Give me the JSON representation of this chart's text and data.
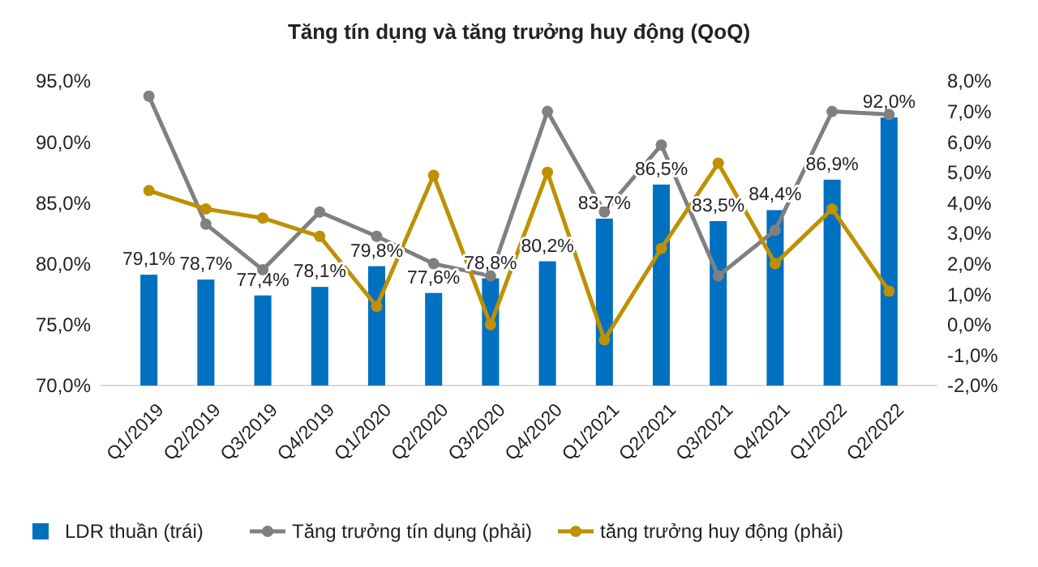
{
  "chart_data": {
    "type": "bar",
    "title": "Tăng tín dụng và tăng trưởng huy động (QoQ)",
    "categories": [
      "Q1/2019",
      "Q2/2019",
      "Q3/2019",
      "Q4/2019",
      "Q1/2020",
      "Q2/2020",
      "Q3/2020",
      "Q4/2020",
      "Q1/2021",
      "Q2/2021",
      "Q3/2021",
      "Q4/2021",
      "Q1/2022",
      "Q2/2022"
    ],
    "series": [
      {
        "name": "LDR thuần (trái)",
        "color": "#0070c0",
        "values": [
          79.1,
          78.7,
          77.4,
          78.1,
          79.8,
          77.6,
          78.8,
          80.2,
          83.7,
          86.5,
          83.5,
          84.4,
          86.9,
          92.0
        ],
        "value_labels": [
          "79,1%",
          "78,7%",
          "77,4%",
          "78,1%",
          "79,8%",
          "77,6%",
          "78,8%",
          "80,2%",
          "83,7%",
          "86,5%",
          "83,5%",
          "84,4%",
          "86,9%",
          "92,0%"
        ]
      },
      {
        "name": "Tăng trưởng tín dụng (phải)",
        "type": "line",
        "axis": "y2",
        "color": "#808080",
        "values": [
          7.5,
          3.3,
          1.8,
          3.7,
          2.9,
          2.0,
          1.6,
          7.0,
          3.7,
          5.9,
          1.6,
          3.1,
          7.0,
          6.9
        ]
      },
      {
        "name": "tăng trưởng huy động (phải)",
        "type": "line",
        "axis": "y2",
        "color": "#bf9000",
        "values": [
          4.4,
          3.8,
          3.5,
          2.9,
          0.6,
          4.9,
          0.0,
          5.0,
          -0.5,
          2.5,
          5.3,
          2.0,
          3.8,
          1.1
        ]
      }
    ],
    "ylim": [
      70,
      95
    ],
    "yticks": [
      {
        "value": 70,
        "label": "70,0%"
      },
      {
        "value": 75,
        "label": "75,0%"
      },
      {
        "value": 80,
        "label": "80,0%"
      },
      {
        "value": 85,
        "label": "85,0%"
      },
      {
        "value": 90,
        "label": "90,0%"
      },
      {
        "value": 95,
        "label": "95,0%"
      }
    ],
    "y2lim": [
      -2,
      8
    ],
    "y2ticks": [
      {
        "value": -2,
        "label": "-2,0%"
      },
      {
        "value": -1,
        "label": "-1,0%"
      },
      {
        "value": 0,
        "label": "0,0%"
      },
      {
        "value": 1,
        "label": "1,0%"
      },
      {
        "value": 2,
        "label": "2,0%"
      },
      {
        "value": 3,
        "label": "3,0%"
      },
      {
        "value": 4,
        "label": "4,0%"
      },
      {
        "value": 5,
        "label": "5,0%"
      },
      {
        "value": 6,
        "label": "6,0%"
      },
      {
        "value": 7,
        "label": "7,0%"
      },
      {
        "value": 8,
        "label": "8,0%"
      }
    ],
    "marker": "circle",
    "legend": "bottom",
    "grid": false
  }
}
